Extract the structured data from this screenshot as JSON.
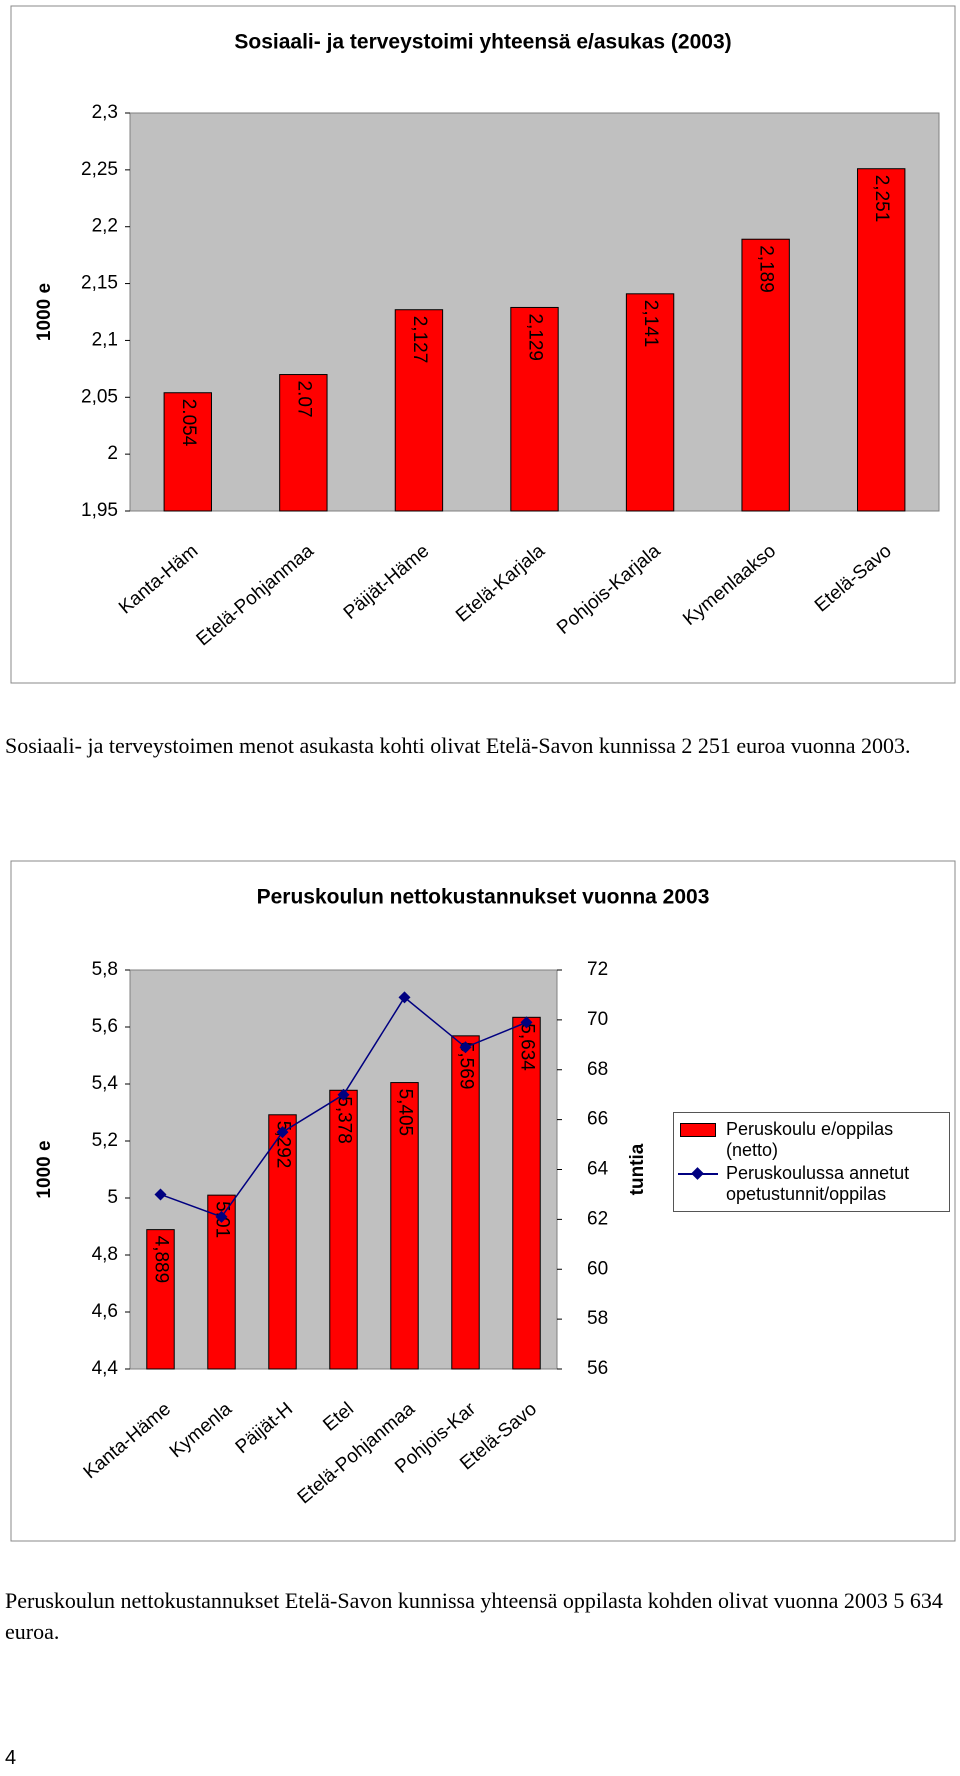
{
  "chart_data": [
    {
      "type": "bar",
      "title": "Sosiaali- ja terveystoimi yhteensä e/asukas (2003)",
      "y_label": "1000 e",
      "categories": [
        "Kanta-Häm",
        "Etelä-Pohjanmaa",
        "Päijät-Häme",
        "Etelä-Karjala",
        "Pohjois-Karjala",
        "Kymenlaakso",
        "Etelä-Savo"
      ],
      "values": [
        2.054,
        2.07,
        2.127,
        2.129,
        2.141,
        2.189,
        2.251
      ],
      "value_labels": [
        "2.054",
        "2.07",
        "2,127",
        "2,129",
        "2,141",
        "2,189",
        "2,251"
      ],
      "color": "#ff0000",
      "ylim": [
        1.95,
        2.3
      ],
      "yticks": [
        {
          "value": 1.95,
          "label": "1,95"
        },
        2,
        {
          "value": 2.05,
          "label": "2,05"
        },
        {
          "value": 2.1,
          "label": "2,1"
        },
        {
          "value": 2.15,
          "label": "2,15"
        },
        {
          "value": 2.2,
          "label": "2,2"
        },
        {
          "value": 2.25,
          "label": "2,25"
        },
        {
          "value": 2.3,
          "label": "2,3"
        }
      ],
      "grid": false
    },
    {
      "type": "combo",
      "title": "Peruskoulun nettokustannukset vuonna 2003",
      "y_label": "1000 e",
      "y2_label": "tuntia",
      "categories": [
        "Kanta-Häme",
        "Kymenla",
        "Päijät-H",
        "Etel",
        "Etelä-Pohjanmaa",
        "Pohjois-Kar",
        "Etelä-Savo"
      ],
      "series": [
        {
          "name": "Peruskoulu e/oppilas (netto)",
          "type": "bar",
          "color": "#ff0000",
          "values": [
            4.889,
            5.01,
            5.292,
            5.378,
            5.405,
            5.569,
            5.634
          ],
          "value_labels": [
            "4,889",
            "5,01",
            "5,292",
            "5,378",
            "5,405",
            "5,569",
            "5,634"
          ]
        },
        {
          "name": "Peruskoulussa annetut opetustunnit/oppilas",
          "type": "line",
          "color": "#000080",
          "axis": "y2",
          "values": [
            63.0,
            62.1,
            65.5,
            67.0,
            70.9,
            68.9,
            69.9
          ]
        }
      ],
      "ylim": [
        4.4,
        5.8
      ],
      "yticks": [
        {
          "value": 4.4,
          "label": "4,4"
        },
        {
          "value": 4.6,
          "label": "4,6"
        },
        {
          "value": 4.8,
          "label": "4,8"
        },
        5,
        {
          "value": 5.2,
          "label": "5,2"
        },
        {
          "value": 5.4,
          "label": "5,4"
        },
        {
          "value": 5.6,
          "label": "5,6"
        },
        {
          "value": 5.8,
          "label": "5,8"
        }
      ],
      "y2lim": [
        56,
        72
      ],
      "y2ticks": [
        56,
        58,
        60,
        62,
        64,
        66,
        68,
        70,
        72
      ],
      "grid": false,
      "legend": "right"
    }
  ],
  "paragraphs": [
    "Sosiaali- ja terveystoimen menot asukasta kohti olivat Etelä-Savon kunnissa 2 251 euroa vuonna 2003.",
    "Peruskoulun nettokustannukset Etelä-Savon kunnissa yhteensä oppilasta kohden olivat vuonna 2003 5 634 euroa."
  ],
  "page_number": "4"
}
